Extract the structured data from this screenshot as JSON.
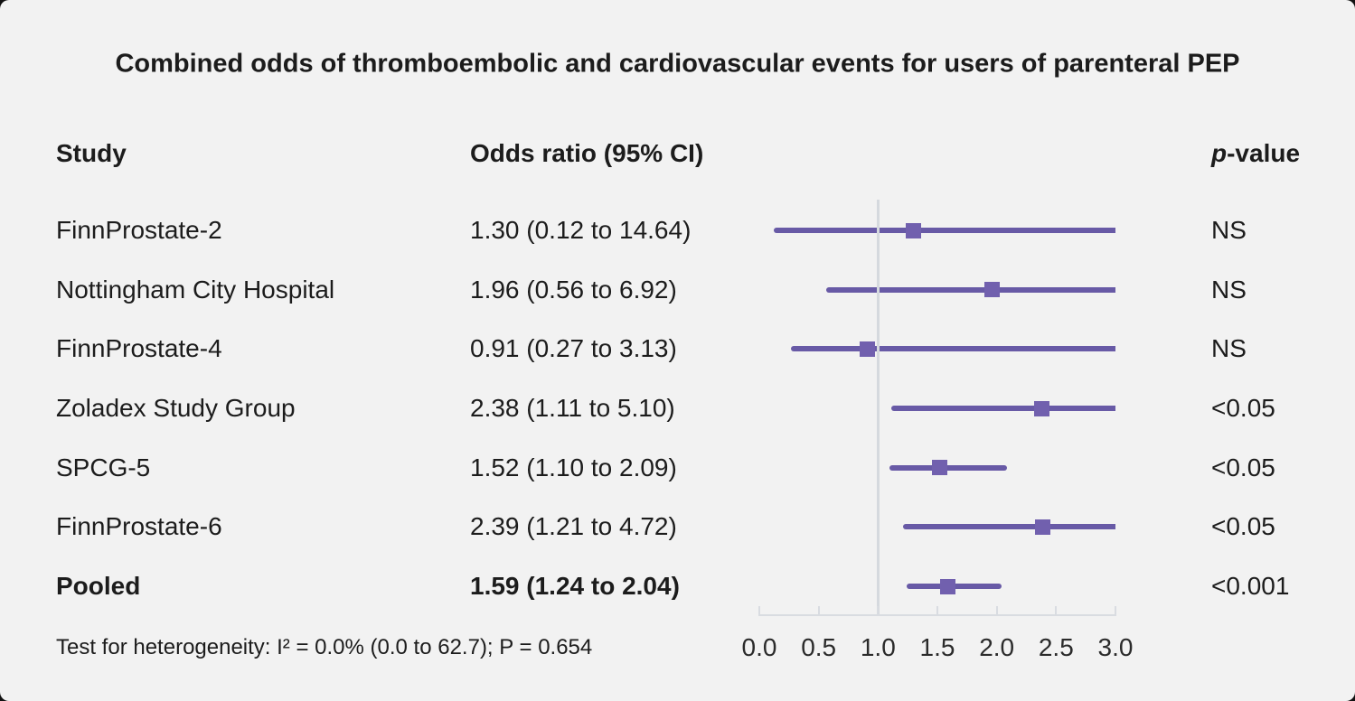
{
  "chart_data": {
    "type": "forest",
    "title": "Combined odds of thromboembolic and cardiovascular events for users of parenteral PEP",
    "columns": {
      "study": "Study",
      "odds_ratio": "Odds ratio (95% CI)",
      "p_italic": "p",
      "p_rest": "-value"
    },
    "studies": [
      {
        "name": "FinnProstate-2",
        "or": 1.3,
        "ci_low": 0.12,
        "ci_high": 14.64,
        "label": "1.30 (0.12 to 14.64)",
        "p_value": "NS",
        "pooled": false
      },
      {
        "name": "Nottingham City Hospital",
        "or": 1.96,
        "ci_low": 0.56,
        "ci_high": 6.92,
        "label": "1.96 (0.56 to 6.92)",
        "p_value": "NS",
        "pooled": false
      },
      {
        "name": "FinnProstate-4",
        "or": 0.91,
        "ci_low": 0.27,
        "ci_high": 3.13,
        "label": "0.91 (0.27 to 3.13)",
        "p_value": "NS",
        "pooled": false
      },
      {
        "name": "Zoladex Study Group",
        "or": 2.38,
        "ci_low": 1.11,
        "ci_high": 5.1,
        "label": "2.38 (1.11 to 5.10)",
        "p_value": "<0.05",
        "pooled": false
      },
      {
        "name": "SPCG-5",
        "or": 1.52,
        "ci_low": 1.1,
        "ci_high": 2.09,
        "label": "1.52 (1.10 to 2.09)",
        "p_value": "<0.05",
        "pooled": false
      },
      {
        "name": "FinnProstate-6",
        "or": 2.39,
        "ci_low": 1.21,
        "ci_high": 4.72,
        "label": "2.39 (1.21 to 4.72)",
        "p_value": "<0.05",
        "pooled": false
      },
      {
        "name": "Pooled",
        "or": 1.59,
        "ci_low": 1.24,
        "ci_high": 2.04,
        "label": "1.59 (1.24 to 2.04)",
        "p_value": "<0.001",
        "pooled": true
      }
    ],
    "x_axis": {
      "min": 0.0,
      "max": 3.0,
      "reference_line": 1.0,
      "ticks": [
        {
          "v": 0.0,
          "label": "0.0"
        },
        {
          "v": 0.5,
          "label": "0.5"
        },
        {
          "v": 1.0,
          "label": "1.0"
        },
        {
          "v": 1.5,
          "label": "1.5"
        },
        {
          "v": 2.0,
          "label": "2.0"
        },
        {
          "v": 2.5,
          "label": "2.5"
        },
        {
          "v": 3.0,
          "label": "3.0"
        }
      ],
      "grid": false
    },
    "footnote": "Test for heterogeneity: I² = 0.0% (0.0 to 62.7); P = 0.654",
    "colors": {
      "background": "#f2f2f2",
      "ci_line": "#685aa6",
      "marker": "#7160ae",
      "axis": "#d9dce1",
      "reference_line": "#d5d9de",
      "text": "#1c1c1c"
    }
  }
}
